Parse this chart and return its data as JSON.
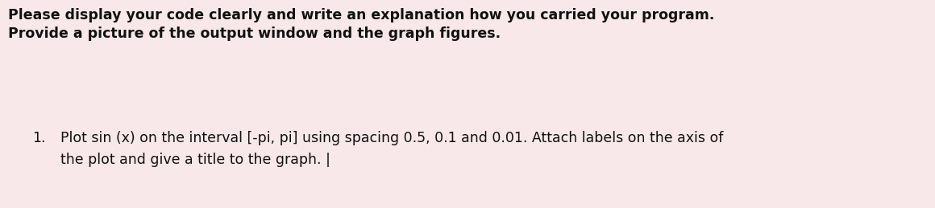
{
  "background_color": "#f9e8ea",
  "line1": "Please display your code clearly and write an explanation how you carried your program.",
  "line2": "Provide a picture of the output window and the graph figures.",
  "item_number": "1.",
  "item_line1": "Plot sin (x) on the interval [-pi, pi] using spacing 0.5, 0.1 and 0.01. Attach labels on the axis of",
  "item_line2": "the plot and give a title to the graph. |",
  "bold_fontsize": 12.5,
  "item_fontsize": 12.5,
  "text_color": "#111111",
  "fig_width": 11.6,
  "fig_height": 2.59,
  "dpi": 100
}
